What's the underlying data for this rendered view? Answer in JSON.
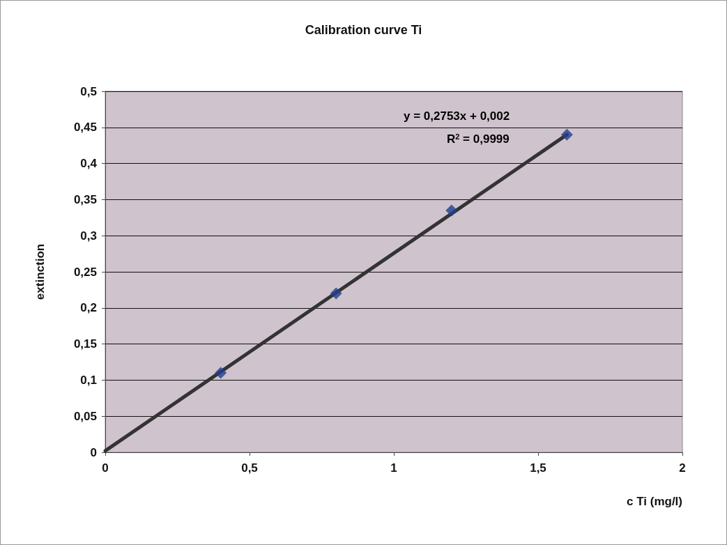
{
  "chart_data": {
    "type": "scatter",
    "title": "Calibration curve Ti",
    "xlabel": "c Ti (mg/l)",
    "ylabel": "extinction",
    "series": [
      {
        "color": "#1f3f8f",
        "marker": "diamond",
        "x": [
          0.4,
          0.8,
          1.2,
          1.6
        ],
        "values": [
          0.11,
          0.22,
          0.335,
          0.44
        ]
      },
      {
        "type": "line",
        "color": "#333333",
        "marker": "none",
        "x": [
          0,
          1.6
        ],
        "values": [
          0.002,
          0.44
        ]
      }
    ],
    "xlim": [
      0,
      2
    ],
    "xticks": [
      0,
      {
        "value": 0.5,
        "label": "0,5"
      },
      1,
      {
        "value": 1.5,
        "label": "1,5"
      },
      2
    ],
    "ylim": [
      0,
      0.5
    ],
    "yticks": [
      0,
      {
        "value": 0.05,
        "label": "0,05"
      },
      {
        "value": 0.1,
        "label": "0,1"
      },
      {
        "value": 0.15,
        "label": "0,15"
      },
      {
        "value": 0.2,
        "label": "0,2"
      },
      {
        "value": 0.25,
        "label": "0,25"
      },
      {
        "value": 0.3,
        "label": "0,3"
      },
      {
        "value": 0.35,
        "label": "0,35"
      },
      {
        "value": 0.4,
        "label": "0,4"
      },
      {
        "value": 0.45,
        "label": "0,45"
      },
      {
        "value": 0.5,
        "label": "0,5"
      }
    ],
    "grid": "y",
    "annotations": [
      "y = 0,2753x + 0,002",
      "R$^{2}$ = 0,9999"
    ]
  }
}
